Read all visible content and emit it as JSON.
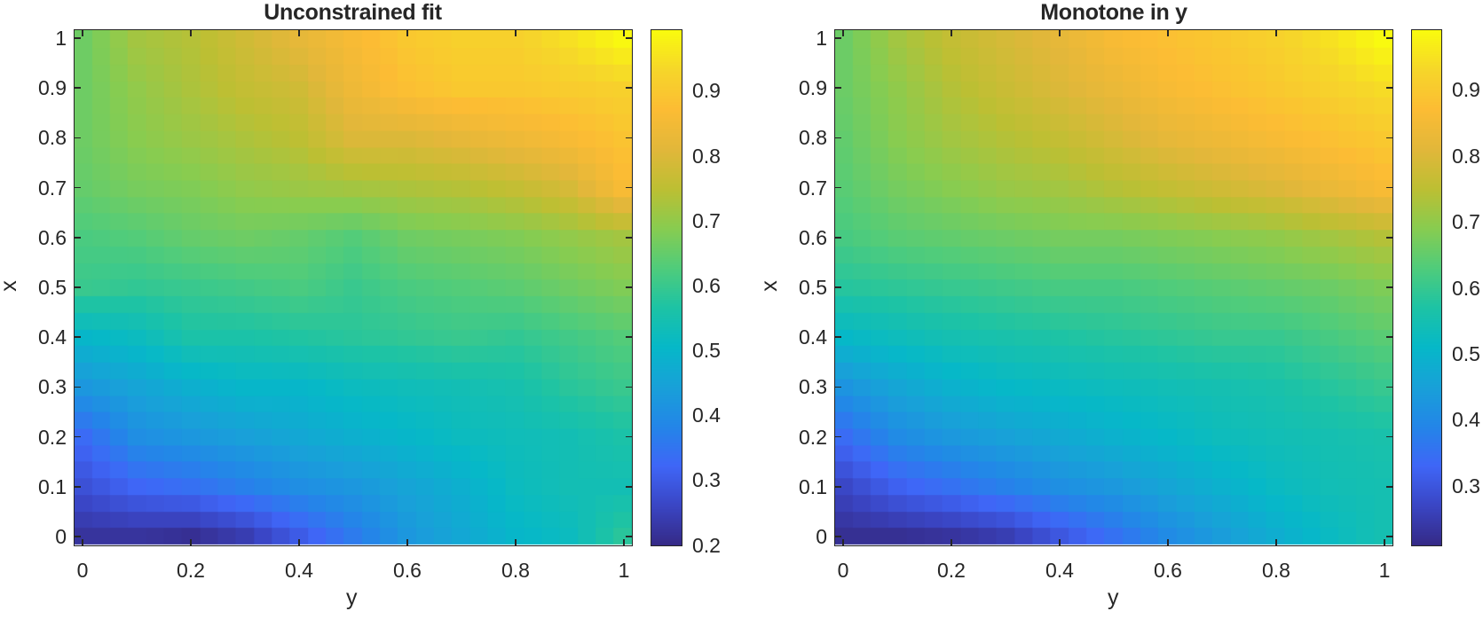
{
  "chart_data": [
    {
      "type": "heatmap",
      "title": "Unconstrained fit",
      "xlabel": "y",
      "ylabel": "x",
      "x_ticks": [
        "0",
        "0.2",
        "0.4",
        "0.6",
        "0.8",
        "1"
      ],
      "y_ticks": [
        "0",
        "0.1",
        "0.2",
        "0.3",
        "0.4",
        "0.5",
        "0.6",
        "0.7",
        "0.8",
        "0.9",
        "1"
      ],
      "xlim": [
        0,
        1
      ],
      "ylim": [
        0,
        1
      ],
      "grid_resolution": 31,
      "colormap": "parula",
      "colorbar": {
        "ticks": [
          "0.2",
          "0.3",
          "0.4",
          "0.5",
          "0.6",
          "0.7",
          "0.8",
          "0.9"
        ],
        "range": [
          0.198,
          0.995
        ]
      },
      "sample_grid_y": [
        0,
        0.1,
        0.2,
        0.3,
        0.4,
        0.5,
        0.6,
        0.7,
        0.8,
        0.9,
        1.0
      ],
      "sample_grid_x": [
        0,
        0.1,
        0.2,
        0.3,
        0.4,
        0.5,
        0.6,
        0.7,
        0.8,
        0.9,
        1.0
      ],
      "values": [
        [
          0.22,
          0.22,
          0.21,
          0.24,
          0.3,
          0.36,
          0.42,
          0.46,
          0.5,
          0.52,
          0.58
        ],
        [
          0.28,
          0.32,
          0.34,
          0.37,
          0.4,
          0.42,
          0.45,
          0.48,
          0.52,
          0.54,
          0.54
        ],
        [
          0.33,
          0.4,
          0.42,
          0.44,
          0.46,
          0.48,
          0.5,
          0.52,
          0.53,
          0.54,
          0.56
        ],
        [
          0.42,
          0.45,
          0.48,
          0.5,
          0.5,
          0.52,
          0.53,
          0.54,
          0.55,
          0.58,
          0.6
        ],
        [
          0.5,
          0.52,
          0.56,
          0.56,
          0.57,
          0.58,
          0.59,
          0.6,
          0.59,
          0.61,
          0.63
        ],
        [
          0.6,
          0.59,
          0.6,
          0.61,
          0.62,
          0.6,
          0.62,
          0.63,
          0.64,
          0.66,
          0.68
        ],
        [
          0.62,
          0.63,
          0.65,
          0.66,
          0.65,
          0.63,
          0.66,
          0.67,
          0.68,
          0.7,
          0.72
        ],
        [
          0.65,
          0.67,
          0.68,
          0.7,
          0.71,
          0.72,
          0.73,
          0.74,
          0.76,
          0.79,
          0.86
        ],
        [
          0.66,
          0.69,
          0.71,
          0.73,
          0.75,
          0.8,
          0.8,
          0.82,
          0.84,
          0.86,
          0.89
        ],
        [
          0.66,
          0.7,
          0.73,
          0.76,
          0.78,
          0.84,
          0.88,
          0.9,
          0.9,
          0.91,
          0.92
        ],
        [
          0.66,
          0.72,
          0.74,
          0.78,
          0.82,
          0.86,
          0.9,
          0.92,
          0.92,
          0.95,
          0.99
        ]
      ]
    },
    {
      "type": "heatmap",
      "title": "Monotone in y",
      "xlabel": "y",
      "ylabel": "x",
      "x_ticks": [
        "0",
        "0.2",
        "0.4",
        "0.6",
        "0.8",
        "1"
      ],
      "y_ticks": [
        "0",
        "0.1",
        "0.2",
        "0.3",
        "0.4",
        "0.5",
        "0.6",
        "0.7",
        "0.8",
        "0.9",
        "1"
      ],
      "xlim": [
        0,
        1
      ],
      "ylim": [
        0,
        1
      ],
      "grid_resolution": 31,
      "colormap": "parula",
      "colorbar": {
        "ticks": [
          "0.3",
          "0.4",
          "0.5",
          "0.6",
          "0.7",
          "0.8",
          "0.9"
        ],
        "range": [
          0.208,
          0.992
        ]
      },
      "sample_grid_y": [
        0,
        0.1,
        0.2,
        0.3,
        0.4,
        0.5,
        0.6,
        0.7,
        0.8,
        0.9,
        1.0
      ],
      "sample_grid_x": [
        0,
        0.1,
        0.2,
        0.3,
        0.4,
        0.5,
        0.6,
        0.7,
        0.8,
        0.9,
        1.0
      ],
      "values": [
        [
          0.22,
          0.22,
          0.23,
          0.25,
          0.3,
          0.35,
          0.4,
          0.44,
          0.48,
          0.52,
          0.55
        ],
        [
          0.27,
          0.32,
          0.35,
          0.38,
          0.41,
          0.43,
          0.46,
          0.49,
          0.52,
          0.54,
          0.55
        ],
        [
          0.34,
          0.4,
          0.43,
          0.45,
          0.47,
          0.49,
          0.51,
          0.53,
          0.54,
          0.55,
          0.56
        ],
        [
          0.42,
          0.46,
          0.49,
          0.51,
          0.52,
          0.53,
          0.54,
          0.55,
          0.56,
          0.58,
          0.6
        ],
        [
          0.51,
          0.53,
          0.55,
          0.56,
          0.57,
          0.58,
          0.59,
          0.6,
          0.6,
          0.62,
          0.64
        ],
        [
          0.58,
          0.59,
          0.6,
          0.61,
          0.62,
          0.62,
          0.63,
          0.64,
          0.65,
          0.66,
          0.68
        ],
        [
          0.62,
          0.64,
          0.65,
          0.66,
          0.67,
          0.67,
          0.68,
          0.69,
          0.7,
          0.72,
          0.74
        ],
        [
          0.64,
          0.67,
          0.69,
          0.71,
          0.72,
          0.74,
          0.76,
          0.78,
          0.8,
          0.83,
          0.86
        ],
        [
          0.65,
          0.69,
          0.72,
          0.74,
          0.76,
          0.79,
          0.82,
          0.84,
          0.86,
          0.88,
          0.9
        ],
        [
          0.66,
          0.7,
          0.74,
          0.77,
          0.8,
          0.83,
          0.86,
          0.88,
          0.9,
          0.92,
          0.94
        ],
        [
          0.66,
          0.72,
          0.76,
          0.79,
          0.82,
          0.86,
          0.88,
          0.9,
          0.92,
          0.95,
          0.99
        ]
      ]
    }
  ],
  "panels": [
    {
      "title": "Unconstrained fit",
      "xlabel": "y",
      "ylabel": "x"
    },
    {
      "title": "Monotone in y",
      "xlabel": "y",
      "ylabel": "x"
    }
  ],
  "colors": {
    "axis": "#262626",
    "parula_stops": [
      "#352a87",
      "#3a46c5",
      "#3f66f7",
      "#2386e8",
      "#18a1d8",
      "#06b8c8",
      "#1dc3a5",
      "#50cc7b",
      "#88cc50",
      "#bdbf33",
      "#e2b73a",
      "#fcbc34",
      "#f6d62a",
      "#f9fb0e"
    ]
  }
}
